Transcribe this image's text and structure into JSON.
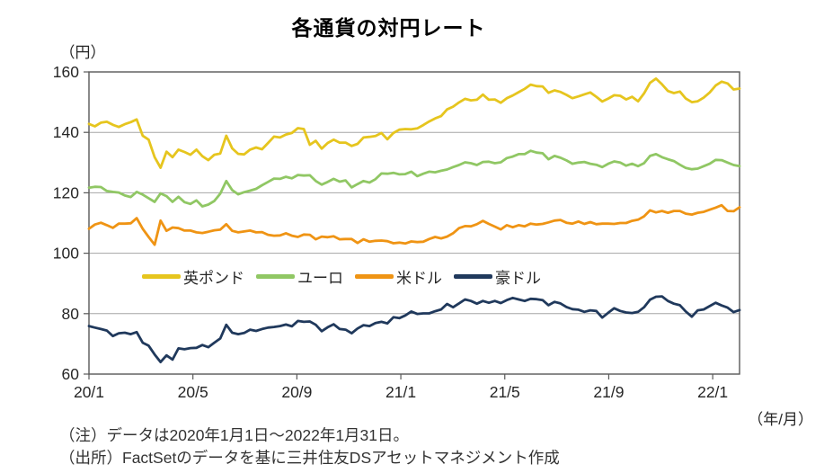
{
  "title": "各通貨の対円レート",
  "y_unit": "（円）",
  "x_unit": "（年/月）",
  "notes": [
    "（注）データは2020年1月1日～2022年1月31日。",
    "（出所）FactSetのデータを基に三井住友DSアセットマネジメント作成"
  ],
  "chart_data": {
    "type": "line",
    "title": "各通貨の対円レート",
    "ylabel": "（円）",
    "xlabel": "（年/月）",
    "ylim": [
      60,
      160
    ],
    "y_ticks": [
      160,
      140,
      120,
      100,
      80,
      60
    ],
    "x_ticks": [
      {
        "label": "20/1",
        "month": 0
      },
      {
        "label": "20/5",
        "month": 4
      },
      {
        "label": "20/9",
        "month": 8
      },
      {
        "label": "21/1",
        "month": 12
      },
      {
        "label": "21/5",
        "month": 16
      },
      {
        "label": "21/9",
        "month": 20
      },
      {
        "label": "22/1",
        "month": 24
      }
    ],
    "x_total_months": 25.04,
    "x_sampling": "weekly values, 2020-01-01 through 2022-01-31",
    "grid": "horizontal",
    "legend_position": "inside-left-between-100-and-80",
    "border_color": "#595959",
    "grid_color": "#a6a6a6",
    "series": [
      {
        "id": "gbp",
        "name": "英ポンド",
        "color": "#e6c51e",
        "values": [
          142.8,
          142.0,
          143.2,
          143.5,
          142.5,
          141.8,
          142.7,
          143.4,
          144.3,
          138.9,
          137.6,
          131.8,
          128.3,
          133.6,
          131.8,
          134.3,
          133.5,
          132.6,
          134.3,
          132.1,
          130.8,
          132.6,
          133.0,
          138.9,
          134.7,
          132.9,
          132.7,
          134.3,
          135.0,
          134.4,
          136.5,
          138.6,
          138.3,
          139.3,
          139.8,
          141.4,
          141.1,
          135.9,
          137.2,
          134.6,
          136.5,
          137.6,
          136.6,
          136.6,
          135.5,
          136.2,
          138.3,
          138.5,
          138.8,
          139.8,
          137.7,
          139.8,
          140.9,
          141.1,
          141.0,
          141.3,
          142.4,
          143.6,
          144.6,
          145.4,
          147.6,
          148.5,
          149.9,
          151.1,
          150.6,
          150.8,
          152.5,
          150.8,
          150.9,
          149.8,
          151.3,
          152.2,
          153.3,
          154.4,
          155.8,
          155.3,
          155.2,
          153.1,
          153.9,
          153.4,
          152.4,
          151.3,
          151.9,
          152.6,
          153.2,
          151.8,
          150.2,
          151.2,
          152.3,
          152.1,
          150.9,
          151.8,
          150.3,
          152.9,
          156.4,
          157.8,
          155.9,
          153.7,
          153.0,
          153.5,
          151.2,
          150.0,
          150.3,
          151.5,
          153.2,
          155.5,
          156.8,
          156.2,
          154.2,
          154.5
        ]
      },
      {
        "id": "eur",
        "name": "ユーロ",
        "color": "#90c764",
        "values": [
          121.7,
          122.0,
          121.9,
          120.6,
          120.3,
          120.1,
          119.1,
          118.6,
          120.3,
          119.4,
          118.2,
          117.0,
          119.8,
          118.9,
          117.0,
          118.7,
          116.9,
          116.3,
          117.5,
          115.5,
          116.1,
          117.3,
          119.7,
          123.9,
          120.9,
          119.5,
          120.2,
          120.7,
          121.3,
          122.5,
          123.6,
          124.7,
          124.6,
          125.3,
          124.8,
          125.9,
          125.7,
          125.8,
          123.9,
          122.7,
          123.6,
          124.6,
          123.7,
          124.1,
          121.8,
          122.9,
          123.9,
          123.4,
          124.5,
          126.4,
          126.3,
          126.6,
          126.1,
          126.2,
          127.0,
          125.5,
          126.3,
          127.0,
          126.8,
          127.3,
          127.7,
          128.5,
          129.2,
          130.1,
          129.8,
          129.2,
          130.2,
          130.3,
          129.8,
          130.1,
          131.5,
          132.0,
          132.8,
          132.8,
          133.9,
          133.3,
          133.1,
          131.1,
          132.2,
          131.6,
          130.7,
          129.6,
          130.0,
          130.2,
          129.6,
          129.3,
          128.5,
          129.6,
          130.4,
          130.0,
          129.0,
          129.6,
          128.8,
          129.8,
          132.2,
          132.8,
          131.8,
          131.1,
          130.5,
          129.3,
          128.2,
          127.8,
          128.0,
          128.8,
          129.6,
          130.9,
          130.8,
          130.0,
          129.2,
          128.8
        ]
      },
      {
        "id": "usd",
        "name": "米ドル",
        "color": "#ef9414",
        "values": [
          108.1,
          109.5,
          110.1,
          109.3,
          108.4,
          109.8,
          109.8,
          109.9,
          111.6,
          108.1,
          105.4,
          102.8,
          110.8,
          107.4,
          108.5,
          108.3,
          107.5,
          107.5,
          106.9,
          106.7,
          107.1,
          107.6,
          107.8,
          109.6,
          107.4,
          106.9,
          107.2,
          107.5,
          106.9,
          107.0,
          106.1,
          105.8,
          105.9,
          106.6,
          105.8,
          105.4,
          106.2,
          106.1,
          104.6,
          105.5,
          105.3,
          105.6,
          104.6,
          104.7,
          104.7,
          103.4,
          104.6,
          103.8,
          104.1,
          104.2,
          104.0,
          103.3,
          103.5,
          103.2,
          103.9,
          103.7,
          103.8,
          104.7,
          105.4,
          104.9,
          105.5,
          106.6,
          108.3,
          109.0,
          108.9,
          109.6,
          110.7,
          109.7,
          108.8,
          107.9,
          109.3,
          108.6,
          109.3,
          108.9,
          109.8,
          109.5,
          109.7,
          110.2,
          110.8,
          111.0,
          110.1,
          109.8,
          110.5,
          109.7,
          110.3,
          109.6,
          109.8,
          109.8,
          109.7,
          110.0,
          110.0,
          110.7,
          111.1,
          112.2,
          114.2,
          113.5,
          114.0,
          113.4,
          114.0,
          114.0,
          113.1,
          112.8,
          113.4,
          113.7,
          114.4,
          115.1,
          115.9,
          114.0,
          113.9,
          115.2
        ]
      },
      {
        "id": "aud",
        "name": "豪ドル",
        "color": "#20395c",
        "values": [
          75.9,
          75.4,
          74.9,
          74.4,
          72.6,
          73.5,
          73.7,
          73.2,
          73.9,
          70.4,
          69.4,
          66.5,
          64.0,
          66.2,
          64.8,
          68.5,
          68.2,
          68.6,
          68.7,
          69.6,
          68.9,
          70.4,
          71.8,
          76.3,
          73.7,
          73.2,
          73.6,
          74.7,
          74.3,
          74.9,
          75.4,
          75.6,
          75.9,
          76.4,
          75.8,
          77.6,
          77.3,
          77.4,
          76.3,
          74.2,
          75.5,
          76.5,
          74.9,
          74.7,
          73.5,
          75.1,
          76.2,
          75.9,
          76.9,
          77.3,
          76.8,
          78.8,
          78.5,
          79.4,
          80.7,
          79.9,
          80.1,
          80.1,
          80.8,
          81.4,
          83.2,
          82.1,
          83.4,
          84.7,
          84.2,
          83.3,
          84.2,
          83.6,
          84.2,
          83.5,
          84.5,
          85.2,
          84.7,
          84.2,
          84.9,
          84.8,
          84.5,
          82.8,
          83.9,
          83.4,
          82.2,
          81.5,
          81.3,
          80.6,
          81.1,
          80.9,
          78.7,
          80.3,
          81.8,
          80.9,
          80.4,
          80.2,
          80.6,
          82.1,
          84.6,
          85.6,
          85.7,
          84.2,
          83.3,
          82.8,
          80.7,
          79.0,
          81.1,
          81.4,
          82.5,
          83.6,
          82.7,
          82.0,
          80.5,
          81.2
        ]
      }
    ]
  }
}
